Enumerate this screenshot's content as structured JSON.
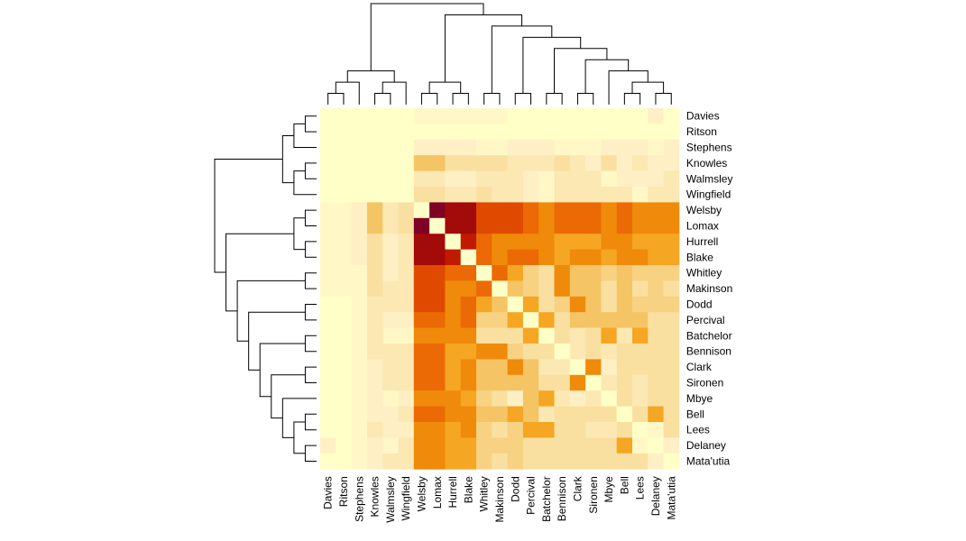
{
  "chart_data": {
    "type": "heatmap",
    "title": "",
    "xlabel": "",
    "ylabel": "",
    "legend": "none",
    "grid": false,
    "color_scale": {
      "low": "#FFFFC8",
      "high": "#800026",
      "stops": [
        "#FFFFC8",
        "#FEF0C4",
        "#FAE0A0",
        "#F5C465",
        "#F5A623",
        "#F08A0A",
        "#EB6A05",
        "#E04A00",
        "#C01A00",
        "#A30A0A",
        "#800026"
      ]
    },
    "row_labels": [
      "Davies",
      "Ritson",
      "Stephens",
      "Knowles",
      "Walmsley",
      "Wingfield",
      "Welsby",
      "Lomax",
      "Hurrell",
      "Blake",
      "Whitley",
      "Makinson",
      "Dodd",
      "Percival",
      "Batchelor",
      "Bennison",
      "Clark",
      "Sironen",
      "Mbye",
      "Bell",
      "Lees",
      "Delaney",
      "Mata'utia"
    ],
    "column_labels": [
      "Davies",
      "Ritson",
      "Stephens",
      "Knowles",
      "Walmsley",
      "Wingfield",
      "Welsby",
      "Lomax",
      "Hurrell",
      "Blake",
      "Whitley",
      "Makinson",
      "Dodd",
      "Percival",
      "Batchelor",
      "Bennison",
      "Clark",
      "Sironen",
      "Mbye",
      "Bell",
      "Lees",
      "Delaney",
      "Mata'utia"
    ],
    "values": [
      [
        0,
        0,
        0,
        0,
        0,
        0,
        0.5,
        0.5,
        0.5,
        0.5,
        0.5,
        0.5,
        0,
        0,
        0,
        0,
        0,
        0,
        0,
        0,
        0,
        1,
        0
      ],
      [
        0,
        0,
        0,
        0,
        0,
        0,
        0,
        0,
        0,
        0,
        0,
        0,
        0,
        0,
        0,
        0,
        0,
        0,
        0,
        0,
        0,
        0,
        0
      ],
      [
        0,
        0,
        0,
        0,
        0,
        0,
        1,
        1,
        1,
        1,
        0.5,
        0.5,
        1,
        1,
        1,
        0.5,
        0.5,
        0.5,
        1,
        1,
        1,
        0.5,
        1
      ],
      [
        0,
        0,
        0,
        0,
        0,
        0,
        3,
        3,
        2,
        2,
        2,
        2,
        1.5,
        1.5,
        1.5,
        2,
        1.5,
        1,
        2,
        1,
        1.5,
        1,
        1
      ],
      [
        0,
        0,
        0,
        0,
        0,
        0,
        1.5,
        1.5,
        1,
        1,
        1.5,
        1.5,
        1.5,
        1,
        0.5,
        1.5,
        1.5,
        1.5,
        0.5,
        1,
        1,
        1,
        1.5
      ],
      [
        0,
        0,
        0,
        0,
        0,
        0,
        2,
        2,
        1.5,
        1.5,
        2,
        1.5,
        1.5,
        1,
        0.5,
        1.5,
        1.5,
        1.5,
        1.5,
        1.5,
        0.5,
        1.5,
        1.5
      ],
      [
        0.5,
        0.5,
        1,
        3,
        1.5,
        2,
        0,
        10,
        9,
        9,
        7,
        7,
        7,
        6,
        5,
        6,
        6,
        6,
        5,
        6,
        5,
        5,
        5
      ],
      [
        0.5,
        0.5,
        1,
        3,
        1.5,
        2,
        10,
        0,
        9,
        9,
        7,
        7,
        7,
        6,
        5,
        6,
        6,
        6,
        5,
        6,
        5,
        5,
        5
      ],
      [
        0.5,
        0.5,
        1,
        2,
        1,
        1.5,
        9,
        9,
        0,
        8,
        6,
        5,
        5,
        5,
        5,
        4,
        4,
        4,
        5,
        5,
        4,
        4,
        4
      ],
      [
        0.5,
        0.5,
        1,
        2,
        1,
        1.5,
        9,
        9,
        8,
        0,
        6,
        5,
        6,
        6,
        5,
        4,
        5,
        5,
        4,
        5,
        5,
        4,
        4
      ],
      [
        0.5,
        0.5,
        0.5,
        2,
        1,
        1.5,
        7,
        7,
        6,
        6,
        0,
        6,
        4,
        2.5,
        2,
        5,
        3,
        3,
        2.5,
        3,
        2.5,
        2.5,
        2.5
      ],
      [
        0.5,
        0.5,
        0.5,
        2,
        1.5,
        1.5,
        7,
        7,
        5,
        5,
        6,
        0,
        3,
        2.5,
        2,
        5,
        3,
        3,
        2,
        3,
        2,
        2.5,
        2
      ],
      [
        0,
        0,
        0.5,
        1.5,
        1.5,
        1.5,
        7,
        7,
        5,
        6,
        4,
        3,
        0,
        4,
        2,
        2.5,
        5,
        3,
        2,
        3,
        2.5,
        2.5,
        2.5
      ],
      [
        0,
        0,
        0.5,
        1.5,
        1,
        1,
        6,
        6,
        5,
        6,
        2.5,
        2.5,
        4,
        0,
        4,
        2,
        3,
        3,
        3,
        3,
        3,
        2,
        2
      ],
      [
        0,
        0,
        0.5,
        1.5,
        0.5,
        0.5,
        5,
        5,
        5,
        5,
        2,
        2,
        2,
        4,
        0,
        2,
        1.5,
        2,
        4,
        1.5,
        4,
        2,
        2
      ],
      [
        0,
        0,
        0.5,
        1.5,
        1.5,
        1.5,
        6,
        6,
        4,
        4,
        5,
        5,
        2.5,
        2,
        2,
        0,
        1.5,
        2,
        1.5,
        2,
        2,
        2,
        2
      ],
      [
        0,
        0,
        0.5,
        1,
        1.5,
        1.5,
        6,
        6,
        4,
        5,
        3,
        3,
        5,
        3,
        1.5,
        1.5,
        0,
        5,
        1,
        2,
        2,
        2,
        2
      ],
      [
        0,
        0,
        0.5,
        1,
        1.5,
        1.5,
        6,
        6,
        4,
        5,
        3,
        3,
        3,
        3,
        2,
        2,
        5,
        0,
        1.5,
        2,
        1.5,
        2,
        2
      ],
      [
        0,
        0,
        0.5,
        1,
        0.5,
        1,
        5,
        5,
        5,
        4,
        2.5,
        2,
        1,
        3,
        4,
        1.5,
        1,
        1.5,
        0,
        2,
        1.5,
        2,
        2
      ],
      [
        0,
        0,
        0.5,
        1,
        1,
        1.5,
        6,
        6,
        5,
        5,
        3,
        3,
        4,
        3,
        1.5,
        2,
        2,
        2,
        2,
        0,
        2,
        4,
        2
      ],
      [
        0,
        0,
        0.5,
        1.5,
        1,
        1,
        5,
        5,
        4,
        5,
        2.5,
        2,
        2.5,
        4,
        4,
        2,
        2,
        1.5,
        1.5,
        2,
        0,
        0.5,
        2
      ],
      [
        1,
        0,
        0.5,
        1,
        0.5,
        1.5,
        5,
        5,
        4,
        4,
        2.5,
        2.5,
        2.5,
        2,
        2,
        2,
        2,
        2,
        2,
        4,
        0.5,
        0,
        1
      ],
      [
        0,
        0,
        0.5,
        1,
        1.5,
        1.5,
        5,
        5,
        4,
        4,
        2.5,
        2,
        2.5,
        2,
        2,
        2,
        2,
        2,
        2,
        2,
        2,
        1,
        0
      ]
    ]
  }
}
